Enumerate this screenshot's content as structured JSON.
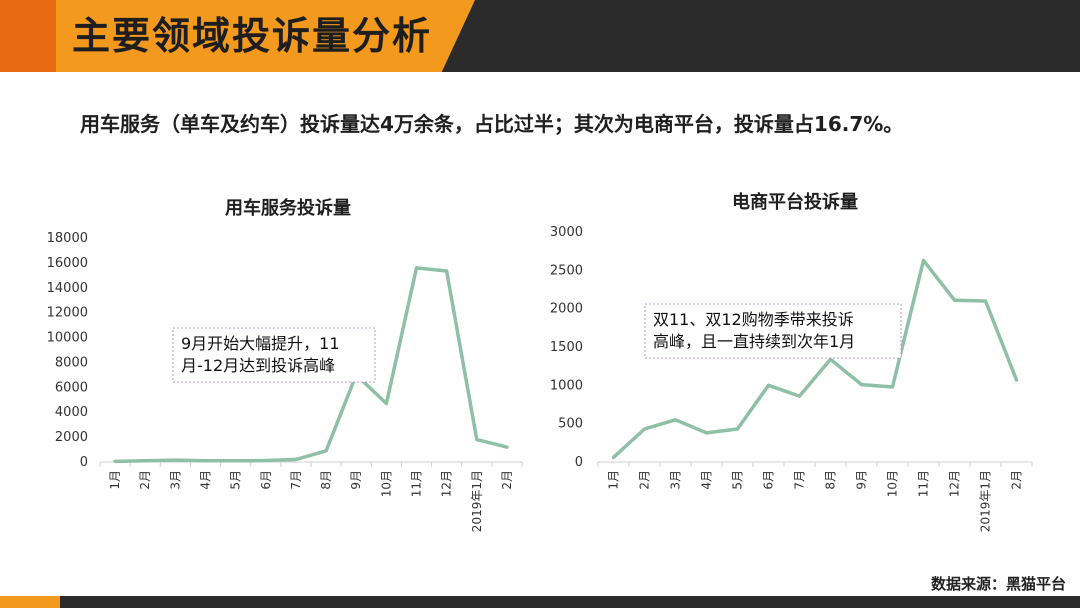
{
  "header": {
    "title": "主要领域投诉量分析"
  },
  "headline": "用车服务（单车及约车）投诉量达4万余条，占比过半；其次为电商平台，投诉量占16.7%。",
  "source": "数据来源：黑猫平台",
  "colors": {
    "line": "#8fbfa6",
    "accent": "#f39a1e",
    "dark_bar": "#2b2b2b"
  },
  "chart_data": [
    {
      "type": "line",
      "title": "用车服务投诉量",
      "categories": [
        "1月",
        "2月",
        "3月",
        "4月",
        "5月",
        "6月",
        "7月",
        "8月",
        "9月",
        "10月",
        "11月",
        "12月",
        "2019年1月",
        "2月"
      ],
      "values": [
        50,
        100,
        150,
        100,
        100,
        120,
        200,
        900,
        7000,
        4700,
        15600,
        15350,
        1800,
        1200
      ],
      "ylim": [
        0,
        18000
      ],
      "yticks": [
        0,
        2000,
        4000,
        6000,
        8000,
        10000,
        12000,
        14000,
        16000,
        18000
      ],
      "annotation": [
        "9月开始大幅提升，11",
        "月-12月达到投诉高峰"
      ]
    },
    {
      "type": "line",
      "title": "电商平台投诉量",
      "categories": [
        "1月",
        "2月",
        "3月",
        "4月",
        "5月",
        "6月",
        "7月",
        "8月",
        "9月",
        "10月",
        "11月",
        "12月",
        "2019年1月",
        "2月"
      ],
      "values": [
        60,
        430,
        550,
        380,
        430,
        1000,
        860,
        1340,
        1010,
        980,
        2630,
        2110,
        2100,
        1070
      ],
      "ylim": [
        0,
        3000
      ],
      "yticks": [
        0,
        500,
        1000,
        1500,
        2000,
        2500,
        3000
      ],
      "annotation": [
        "双11、双12购物季带来投诉",
        "高峰，且一直持续到次年1月"
      ]
    }
  ]
}
